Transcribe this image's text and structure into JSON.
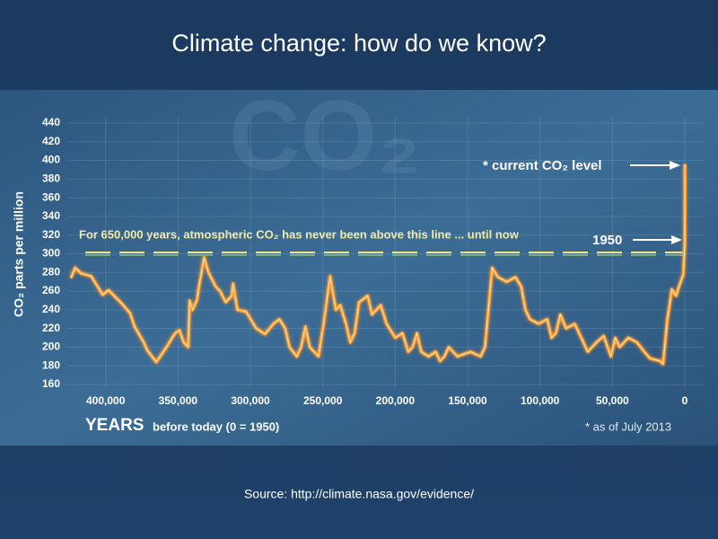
{
  "chart_data": {
    "type": "line",
    "title": "Climate change: how do we know?",
    "watermark": "CO₂",
    "y_label": "CO₂ parts per million",
    "x_label": "YEARS",
    "x_label_note": "before today (0 = 1950)",
    "footnote": "* as of July 2013",
    "source": "Source: http://climate.nasa.gov/evidence/",
    "threshold": 300,
    "threshold_label": "For 650,000 years, atmospheric CO₂ has never been above this line ... until now",
    "annotations": [
      "* current CO₂ level",
      "1950"
    ],
    "color": "#ff9a30",
    "grid": true,
    "xlim": [
      424000,
      0
    ],
    "xticks": [
      {
        "value": 400000,
        "label": "400,000"
      },
      {
        "value": 350000,
        "label": "350,000"
      },
      {
        "value": 300000,
        "label": "300,000"
      },
      {
        "value": 250000,
        "label": "250,000"
      },
      {
        "value": 200000,
        "label": "200,000"
      },
      {
        "value": 150000,
        "label": "150,000"
      },
      {
        "value": 100000,
        "label": "100,000"
      },
      {
        "value": 50000,
        "label": "50,000"
      },
      0
    ],
    "ylim": [
      160,
      440
    ],
    "yticks": [
      160,
      180,
      200,
      220,
      240,
      260,
      280,
      300,
      320,
      340,
      360,
      380,
      400,
      420,
      440
    ],
    "x": [
      424000,
      421000,
      417000,
      410000,
      402000,
      398000,
      389000,
      383000,
      380000,
      374000,
      371000,
      365000,
      358000,
      352000,
      349000,
      346000,
      343000,
      342000,
      340000,
      337000,
      335000,
      332000,
      329000,
      324000,
      321000,
      317000,
      313000,
      312000,
      309000,
      303000,
      296000,
      290000,
      284000,
      280000,
      276000,
      273000,
      268000,
      265000,
      262000,
      259000,
      253000,
      249000,
      245000,
      241000,
      238000,
      234000,
      231000,
      228000,
      225000,
      219000,
      216000,
      210000,
      206000,
      200000,
      195000,
      191000,
      188000,
      185000,
      182000,
      177000,
      172000,
      169000,
      166000,
      163000,
      157000,
      148000,
      141000,
      138000,
      133000,
      129000,
      123000,
      117000,
      113000,
      110000,
      107000,
      101000,
      95000,
      92000,
      89000,
      86000,
      82000,
      76000,
      70000,
      67000,
      61000,
      56000,
      51000,
      48000,
      45000,
      39000,
      33000,
      28000,
      24000,
      17000,
      15000,
      12000,
      11000,
      9000,
      6000,
      4000,
      1000,
      0,
      -63
    ],
    "values": [
      274,
      285,
      279,
      276,
      256,
      261,
      247,
      236,
      222,
      206,
      196,
      184,
      200,
      215,
      218,
      205,
      200,
      250,
      240,
      250,
      270,
      296,
      280,
      265,
      260,
      248,
      255,
      268,
      240,
      238,
      220,
      214,
      225,
      230,
      220,
      200,
      190,
      200,
      222,
      200,
      190,
      230,
      276,
      240,
      245,
      225,
      205,
      215,
      248,
      255,
      235,
      245,
      225,
      210,
      215,
      195,
      200,
      215,
      195,
      190,
      195,
      185,
      190,
      200,
      190,
      195,
      190,
      200,
      285,
      275,
      270,
      275,
      265,
      240,
      230,
      225,
      230,
      210,
      215,
      235,
      220,
      225,
      205,
      195,
      205,
      212,
      190,
      210,
      200,
      210,
      205,
      195,
      188,
      185,
      182,
      230,
      240,
      262,
      255,
      265,
      278,
      311,
      396
    ]
  }
}
